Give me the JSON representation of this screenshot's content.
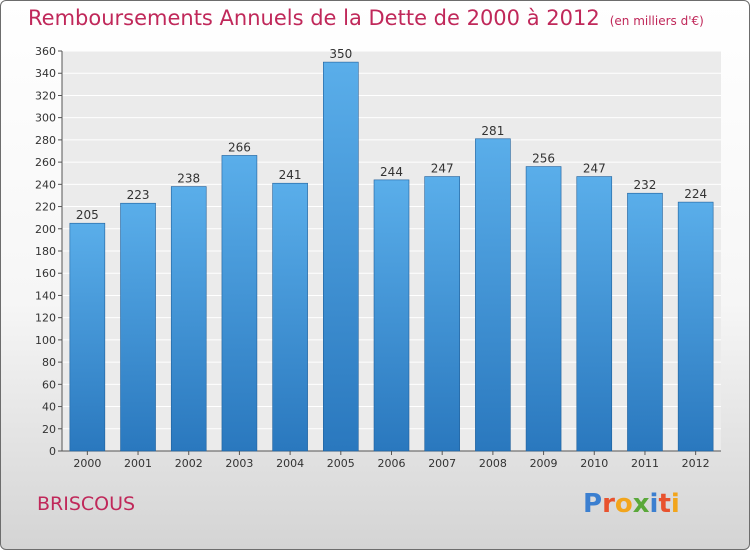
{
  "chart_data": {
    "type": "bar",
    "title": "Remboursements Annuels de la Dette de 2000 à 2012",
    "unit_note": "(en milliers d'€)",
    "categories": [
      "2000",
      "2001",
      "2002",
      "2003",
      "2004",
      "2005",
      "2006",
      "2007",
      "2008",
      "2009",
      "2010",
      "2011",
      "2012"
    ],
    "values": [
      205,
      223,
      238,
      266,
      241,
      350,
      244,
      247,
      281,
      256,
      247,
      232,
      224
    ],
    "ylim": [
      0,
      360
    ],
    "yticks": [
      0,
      20,
      40,
      60,
      80,
      100,
      120,
      140,
      160,
      180,
      200,
      220,
      240,
      260,
      280,
      300,
      320,
      340,
      360
    ],
    "grid": true,
    "bar_color": "#4a9ee0",
    "xlabel": "",
    "ylabel": ""
  },
  "commune": "BRISCOUS",
  "logo": {
    "text": "Proxiti",
    "letter_colors": [
      "#3b7fd0",
      "#e8522e",
      "#f2a51c",
      "#5aa83a",
      "#3b7fd0",
      "#e8522e",
      "#f2a51c"
    ]
  },
  "colors": {
    "title": "#c0285a",
    "accent": "#c0285a"
  }
}
